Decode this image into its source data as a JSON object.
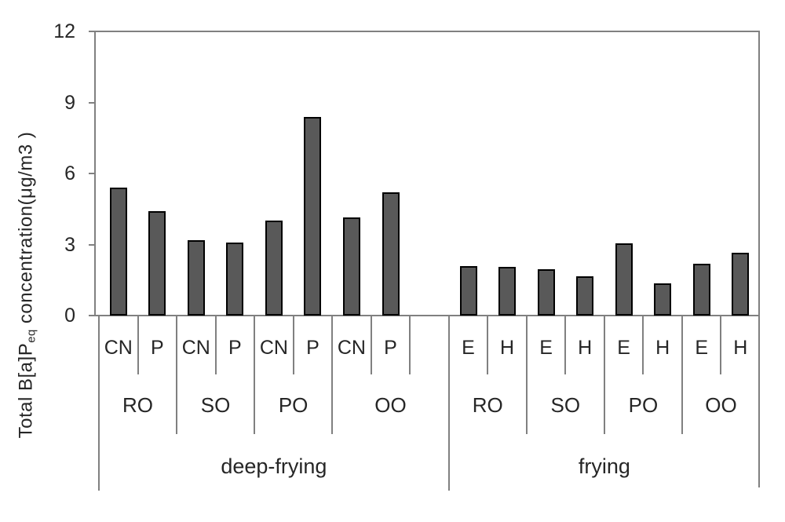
{
  "chart_data": {
    "type": "bar",
    "title": "",
    "xlabel": "",
    "ylabel_parts": {
      "prefix": "Total B[a]P",
      "sub": "eq",
      "suffix": " concentration(μg/m3 )"
    },
    "ylim": [
      0,
      12
    ],
    "yticks": [
      0,
      3,
      6,
      9,
      12
    ],
    "grid": false,
    "legend": false,
    "bar_color": "#595959",
    "bar_border_color": "#000000",
    "axis_color": "#808080",
    "text_color": "#262626",
    "groups": [
      {
        "label": "deep-frying",
        "trailing_gap": true,
        "subgroups": [
          {
            "label": "RO",
            "bars": [
              {
                "label": "CN",
                "value": 5.4
              },
              {
                "label": "P",
                "value": 4.4
              }
            ]
          },
          {
            "label": "SO",
            "bars": [
              {
                "label": "CN",
                "value": 3.2
              },
              {
                "label": "P",
                "value": 3.1
              }
            ]
          },
          {
            "label": "PO",
            "bars": [
              {
                "label": "CN",
                "value": 4.0
              },
              {
                "label": "P",
                "value": 8.4
              }
            ]
          },
          {
            "label": "OO",
            "bars": [
              {
                "label": "CN",
                "value": 4.15
              },
              {
                "label": "P",
                "value": 5.2
              }
            ]
          }
        ]
      },
      {
        "label": "frying",
        "trailing_gap": false,
        "subgroups": [
          {
            "label": "RO",
            "bars": [
              {
                "label": "E",
                "value": 2.1
              },
              {
                "label": "H",
                "value": 2.05
              }
            ]
          },
          {
            "label": "SO",
            "bars": [
              {
                "label": "E",
                "value": 1.95
              },
              {
                "label": "H",
                "value": 1.65
              }
            ]
          },
          {
            "label": "PO",
            "bars": [
              {
                "label": "E",
                "value": 3.05
              },
              {
                "label": "H",
                "value": 1.35
              }
            ]
          },
          {
            "label": "OO",
            "bars": [
              {
                "label": "E",
                "value": 2.2
              },
              {
                "label": "H",
                "value": 2.65
              }
            ]
          }
        ]
      }
    ]
  }
}
